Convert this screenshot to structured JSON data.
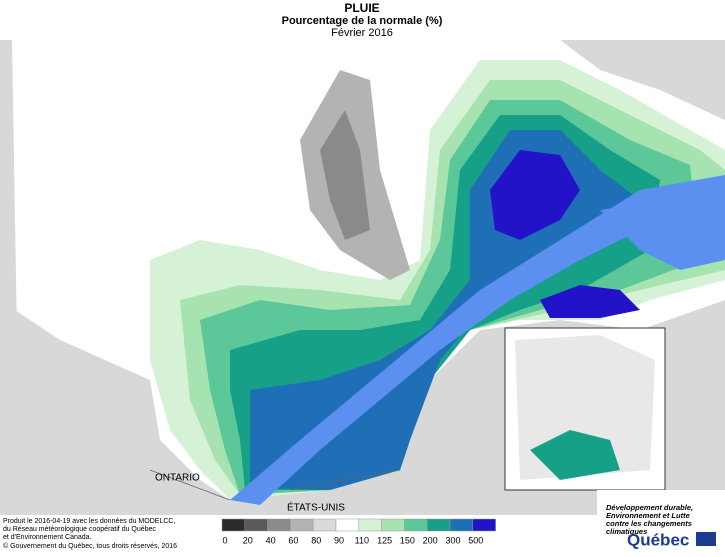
{
  "header": {
    "title": "PLUIE",
    "subtitle": "Pourcentage de la normale (%)",
    "date": "Février 2016"
  },
  "labels": {
    "ontario": "ONTARIO",
    "usa": "ÉTATS-UNIS"
  },
  "legend": {
    "ticks": [
      0,
      20,
      40,
      60,
      80,
      90,
      110,
      125,
      150,
      200,
      300,
      500
    ],
    "colors": [
      "#2b2b2b",
      "#5a5a5a",
      "#8a8a8a",
      "#b3b3b3",
      "#d9d9d9",
      "#ffffff",
      "#d6f2d6",
      "#a6e3b0",
      "#5cc89a",
      "#17a088",
      "#1e6fb5",
      "#2212c8"
    ]
  },
  "credits": [
    "Produit le 2016-04-19 avec les données du MODELCC,",
    "du Réseau météorologique coopératif du Québec",
    "et d'Environnement Canada.",
    "© Gouvernement du Québec, tous droits réservés, 2016"
  ],
  "logo": {
    "ministry": [
      "Développement durable,",
      "Environnement et Lutte",
      "contre les changements",
      "climatiques"
    ],
    "name": "Québec"
  }
}
